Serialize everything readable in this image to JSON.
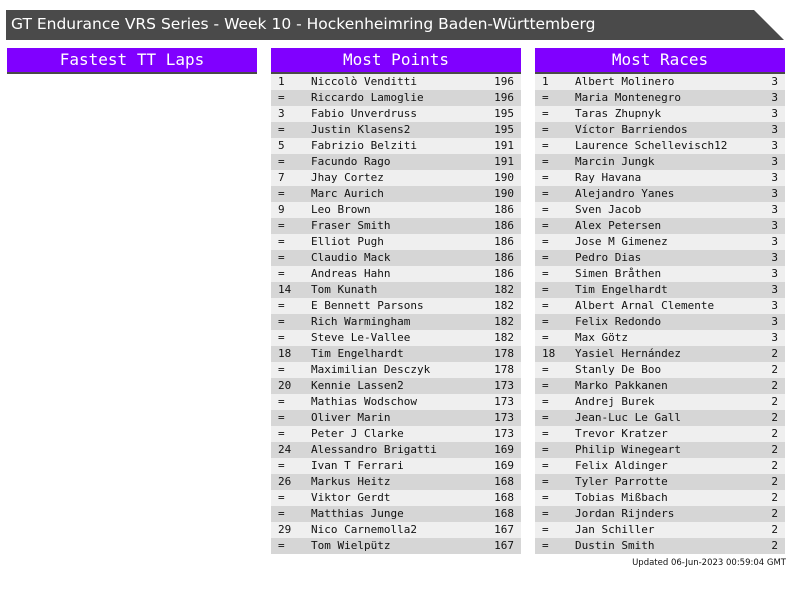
{
  "title": "GT Endurance VRS Series - Week 10 - Hockenheimring Baden-Württemberg",
  "colors": {
    "title_bar": "#4a4a4a",
    "header": "#8000ff",
    "row_light": "#efefef",
    "row_dark": "#d6d6d6"
  },
  "panels": [
    {
      "title": "Fastest TT Laps",
      "rows": []
    },
    {
      "title": "Most Points",
      "rows": [
        [
          "1",
          "Niccolò Venditti",
          "196"
        ],
        [
          "=",
          "Riccardo Lamoglie",
          "196"
        ],
        [
          "3",
          "Fabio Unverdruss",
          "195"
        ],
        [
          "=",
          "Justin Klasens2",
          "195"
        ],
        [
          "5",
          "Fabrizio Belziti",
          "191"
        ],
        [
          "=",
          "Facundo Rago",
          "191"
        ],
        [
          "7",
          "Jhay Cortez",
          "190"
        ],
        [
          "=",
          "Marc Aurich",
          "190"
        ],
        [
          "9",
          "Leo Brown",
          "186"
        ],
        [
          "=",
          "Fraser Smith",
          "186"
        ],
        [
          "=",
          "Elliot Pugh",
          "186"
        ],
        [
          "=",
          "Claudio Mack",
          "186"
        ],
        [
          "=",
          "Andreas Hahn",
          "186"
        ],
        [
          "14",
          "Tom Kunath",
          "182"
        ],
        [
          "=",
          "E Bennett Parsons",
          "182"
        ],
        [
          "=",
          "Rich Warmingham",
          "182"
        ],
        [
          "=",
          "Steve Le-Vallee",
          "182"
        ],
        [
          "18",
          "Tim Engelhardt",
          "178"
        ],
        [
          "=",
          "Maximilian Desczyk",
          "178"
        ],
        [
          "20",
          "Kennie Lassen2",
          "173"
        ],
        [
          "=",
          "Mathias Wodschow",
          "173"
        ],
        [
          "=",
          "Oliver Marin",
          "173"
        ],
        [
          "=",
          "Peter J Clarke",
          "173"
        ],
        [
          "24",
          "Alessandro Brigatti",
          "169"
        ],
        [
          "=",
          "Ivan T Ferrari",
          "169"
        ],
        [
          "26",
          "Markus Heitz",
          "168"
        ],
        [
          "=",
          "Viktor Gerdt",
          "168"
        ],
        [
          "=",
          "Matthias Junge",
          "168"
        ],
        [
          "29",
          "Nico Carnemolla2",
          "167"
        ],
        [
          "=",
          "Tom Wielpütz",
          "167"
        ]
      ]
    },
    {
      "title": "Most Races",
      "rows": [
        [
          "1",
          "Albert Molinero",
          "3"
        ],
        [
          "=",
          "Maria Montenegro",
          "3"
        ],
        [
          "=",
          "Taras Zhupnyk",
          "3"
        ],
        [
          "=",
          "Víctor Barriendos",
          "3"
        ],
        [
          "=",
          "Laurence Schellevisch12",
          "3"
        ],
        [
          "=",
          "Marcin Jungk",
          "3"
        ],
        [
          "=",
          "Ray Havana",
          "3"
        ],
        [
          "=",
          "Alejandro Yanes",
          "3"
        ],
        [
          "=",
          "Sven Jacob",
          "3"
        ],
        [
          "=",
          "Alex Petersen",
          "3"
        ],
        [
          "=",
          "Jose M Gimenez",
          "3"
        ],
        [
          "=",
          "Pedro Dias",
          "3"
        ],
        [
          "=",
          "Simen Bråthen",
          "3"
        ],
        [
          "=",
          "Tim Engelhardt",
          "3"
        ],
        [
          "=",
          "Albert Arnal Clemente",
          "3"
        ],
        [
          "=",
          "Felix Redondo",
          "3"
        ],
        [
          "=",
          "Max Götz",
          "3"
        ],
        [
          "18",
          "Yasiel Hernández",
          "2"
        ],
        [
          "=",
          "Stanly De Boo",
          "2"
        ],
        [
          "=",
          "Marko Pakkanen",
          "2"
        ],
        [
          "=",
          "Andrej Burek",
          "2"
        ],
        [
          "=",
          "Jean-Luc Le Gall",
          "2"
        ],
        [
          "=",
          "Trevor Kratzer",
          "2"
        ],
        [
          "=",
          "Philip Winegeart",
          "2"
        ],
        [
          "=",
          "Felix Aldinger",
          "2"
        ],
        [
          "=",
          "Tyler Parrotte",
          "2"
        ],
        [
          "=",
          "Tobias Mißbach",
          "2"
        ],
        [
          "=",
          "Jordan Rijnders",
          "2"
        ],
        [
          "=",
          "Jan Schiller",
          "2"
        ],
        [
          "=",
          "Dustin Smith",
          "2"
        ]
      ]
    }
  ],
  "updated": "Updated 06-Jun-2023 00:59:04 GMT"
}
